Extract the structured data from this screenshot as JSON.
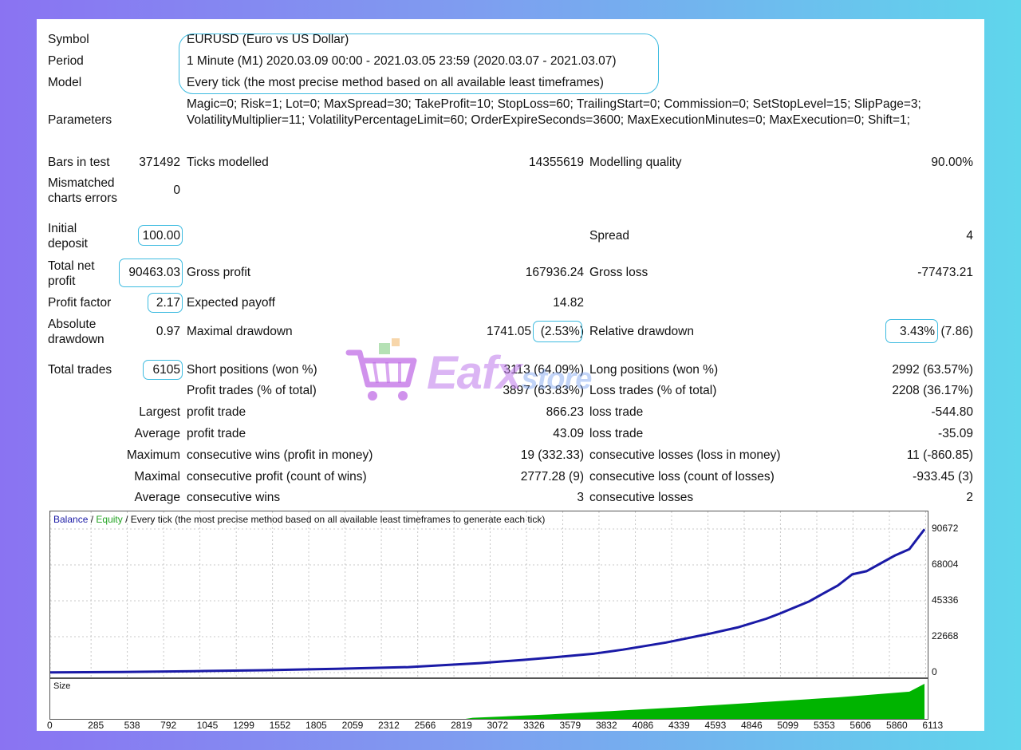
{
  "report": {
    "symbol_label": "Symbol",
    "symbol_value": "EURUSD (Euro vs US Dollar)",
    "period_label": "Period",
    "period_value": "1 Minute (M1) 2020.03.09 00:00 - 2021.03.05 23:59 (2020.03.07 - 2021.03.07)",
    "model_label": "Model",
    "model_value": "Every tick (the most precise method based on all available least timeframes)",
    "parameters_label": "Parameters",
    "parameters_value": "Magic=0; Risk=1; Lot=0; MaxSpread=30; TakeProfit=10; StopLoss=60; TrailingStart=0; Commission=0; SetStopLevel=15; SlipPage=3; VolatilityMultiplier=11; VolatilityPercentageLimit=60; OrderExpireSeconds=3600; MaxExecutionMinutes=0; MaxExecution=0; Shift=1;",
    "bars_label": "Bars in test",
    "bars_value": "371492",
    "ticks_label": "Ticks modelled",
    "ticks_value": "14355619",
    "quality_label": "Modelling quality",
    "quality_value": "90.00%",
    "mismatch_label": "Mismatched charts errors",
    "mismatch_value": "0",
    "deposit_label": "Initial deposit",
    "deposit_value": "100.00",
    "spread_label": "Spread",
    "spread_value": "4",
    "net_label": "Total net profit",
    "net_value": "90463.03",
    "gross_profit_label": "Gross profit",
    "gross_profit_value": "167936.24",
    "gross_loss_label": "Gross loss",
    "gross_loss_value": "-77473.21",
    "pf_label": "Profit factor",
    "pf_value": "2.17",
    "payoff_label": "Expected payoff",
    "payoff_value": "14.82",
    "abs_dd_label": "Absolute drawdown",
    "abs_dd_value": "0.97",
    "max_dd_label": "Maximal drawdown",
    "max_dd_value": "1741.05",
    "max_dd_pct": "(2.53%)",
    "rel_dd_label": "Relative drawdown",
    "rel_dd_pct": "3.43%",
    "rel_dd_value": "(7.86)",
    "total_trades_label": "Total trades",
    "total_trades_value": "6105",
    "short_label": "Short positions (won %)",
    "short_value": "3113 (64.09%)",
    "long_label": "Long positions (won %)",
    "long_value": "2992 (63.57%)",
    "profit_trades_label": "Profit trades (% of total)",
    "profit_trades_value": "3897 (63.83%)",
    "loss_trades_label": "Loss trades (% of total)",
    "loss_trades_value": "2208 (36.17%)",
    "largest_label": "Largest",
    "largest_profit_label": "profit trade",
    "largest_profit_value": "866.23",
    "largest_loss_label": "loss trade",
    "largest_loss_value": "-544.80",
    "average_label": "Average",
    "average_profit_label": "profit trade",
    "average_profit_value": "43.09",
    "average_loss_label": "loss trade",
    "average_loss_value": "-35.09",
    "maximum_label": "Maximum",
    "max_wins_label": "consecutive wins (profit in money)",
    "max_wins_value": "19 (332.33)",
    "max_losses_label": "consecutive losses (loss in money)",
    "max_losses_value": "11 (-860.85)",
    "maximal_label": "Maximal",
    "maximal_profit_label": "consecutive profit (count of wins)",
    "maximal_profit_value": "2777.28 (9)",
    "maximal_loss_label": "consecutive loss (count of losses)",
    "maximal_loss_value": "-933.45 (3)",
    "avg_cons_label": "Average",
    "avg_cons_wins_label": "consecutive wins",
    "avg_cons_wins_value": "3",
    "avg_cons_losses_label": "consecutive losses",
    "avg_cons_losses_value": "2"
  },
  "watermark": {
    "text_main": "Eafx",
    "text_tail": "store",
    "cart_color": "#c06de6"
  },
  "chart": {
    "legend_balance": "Balance",
    "legend_sep1": " / ",
    "legend_equity": "Equity",
    "legend_rest": " / Every tick (the most precise method based on all available least timeframes to generate each tick)",
    "size_label": "Size",
    "balance_color": "#1a1aa6",
    "equity_color": "#22a322",
    "size_color": "#00b400"
  },
  "chart_data": {
    "type": "line",
    "title": "",
    "xlabel": "",
    "ylabel": "",
    "y_ticks": [
      "90672",
      "68004",
      "45336",
      "22668",
      "0"
    ],
    "x_ticks": [
      "0",
      "285",
      "538",
      "792",
      "1045",
      "1299",
      "1552",
      "1805",
      "2059",
      "2312",
      "2566",
      "2819",
      "3072",
      "3326",
      "3579",
      "3832",
      "4086",
      "4339",
      "4593",
      "4846",
      "5099",
      "5353",
      "5606",
      "5860",
      "6113"
    ],
    "ylim": [
      0,
      90672
    ],
    "xlim": [
      0,
      6105
    ],
    "grid": true,
    "series": [
      {
        "name": "Balance",
        "x": [
          0,
          500,
          1000,
          1500,
          2000,
          2500,
          3000,
          3300,
          3500,
          3800,
          4000,
          4300,
          4600,
          4800,
          5000,
          5100,
          5300,
          5400,
          5500,
          5600,
          5700,
          5800,
          5900,
          6000,
          6105
        ],
        "y": [
          100,
          400,
          900,
          1500,
          2400,
          3500,
          6000,
          8000,
          9500,
          12000,
          14500,
          19000,
          24500,
          28500,
          34000,
          37500,
          45000,
          50000,
          55000,
          62000,
          64000,
          69000,
          74000,
          78000,
          90463
        ]
      },
      {
        "name": "Size",
        "x": [
          0,
          2900,
          2950,
          3500,
          4000,
          4500,
          5000,
          5500,
          6000,
          6105
        ],
        "y": [
          0,
          0,
          2,
          8,
          15,
          22,
          30,
          38,
          48,
          62
        ]
      }
    ]
  }
}
